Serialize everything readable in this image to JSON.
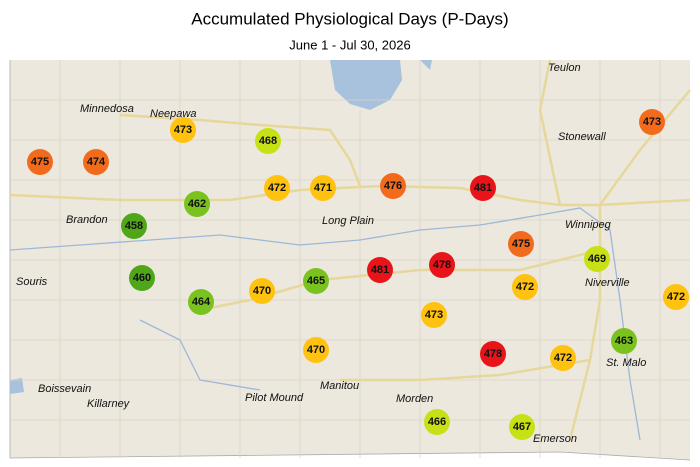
{
  "title": "Accumulated Physiological Days (P-Days)",
  "subtitle": "June 1 - Jul 30, 2026",
  "places": [
    "Teulon",
    "Minnedosa",
    "Neepawa",
    "Stonewall",
    "Winnipeg",
    "Brandon",
    "Long Plain",
    "Souris",
    "Niverville",
    "St. Malo",
    "Boissevain",
    "Killarney",
    "Pilot Mound",
    "Manitou",
    "Morden",
    "Emerson"
  ],
  "stations": [
    {
      "value": 475,
      "color": "#f26b1d"
    },
    {
      "value": 474,
      "color": "#f26b1d"
    },
    {
      "value": 473,
      "color": "#ffc20e"
    },
    {
      "value": 468,
      "color": "#c8e016"
    },
    {
      "value": 472,
      "color": "#ffc20e"
    },
    {
      "value": 471,
      "color": "#ffc20e"
    },
    {
      "value": 476,
      "color": "#f26b1d"
    },
    {
      "value": 481,
      "color": "#e8141a"
    },
    {
      "value": 473,
      "color": "#f26b1d"
    },
    {
      "value": 462,
      "color": "#7ac21e"
    },
    {
      "value": 458,
      "color": "#4ea618"
    },
    {
      "value": 475,
      "color": "#f26b1d"
    },
    {
      "value": 469,
      "color": "#c8e016"
    },
    {
      "value": 481,
      "color": "#e8141a"
    },
    {
      "value": 478,
      "color": "#e8141a"
    },
    {
      "value": 460,
      "color": "#4ea618"
    },
    {
      "value": 464,
      "color": "#7ac21e"
    },
    {
      "value": 470,
      "color": "#ffc20e"
    },
    {
      "value": 465,
      "color": "#7ac21e"
    },
    {
      "value": 472,
      "color": "#ffc20e"
    },
    {
      "value": 472,
      "color": "#ffc20e"
    },
    {
      "value": 473,
      "color": "#ffc20e"
    },
    {
      "value": 470,
      "color": "#ffc20e"
    },
    {
      "value": 478,
      "color": "#e8141a"
    },
    {
      "value": 472,
      "color": "#ffc20e"
    },
    {
      "value": 463,
      "color": "#7ac21e"
    },
    {
      "value": 466,
      "color": "#c8e016"
    },
    {
      "value": 467,
      "color": "#c8e016"
    }
  ]
}
